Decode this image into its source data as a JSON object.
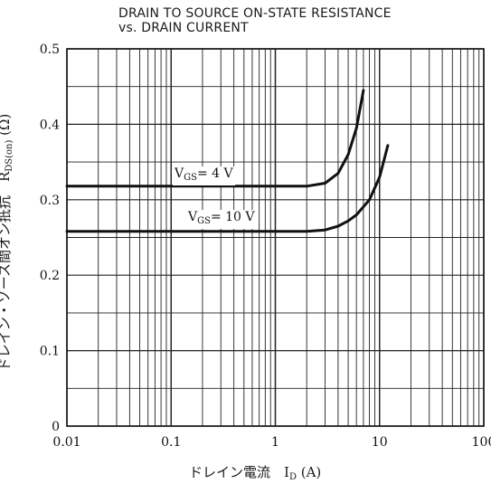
{
  "chart_data": {
    "type": "line",
    "title": "DRAIN TO SOURCE ON-STATE RESISTANCE",
    "subtitle": "vs. DRAIN CURRENT",
    "ylabel_main": "ドレイン・ソース間オン抵抗　R",
    "ylabel_sub": "DS(on)",
    "ylabel_unit": " (Ω)",
    "xlabel_main": "ドレイン電流　I",
    "xlabel_sub": "D",
    "xlabel_unit": " (A)",
    "x_scale": "log",
    "xlim": [
      0.01,
      100
    ],
    "ylim": [
      0,
      0.5
    ],
    "x_ticks": [
      "0.01",
      "0.1",
      "1",
      "10",
      "100"
    ],
    "y_ticks": [
      "0",
      "0.1",
      "0.2",
      "0.3",
      "0.4",
      "0.5"
    ],
    "grid": true,
    "series": [
      {
        "name": "VGS=4 V",
        "label_main": "V",
        "label_sub": "GS",
        "label_rest": "= 4  V",
        "x": [
          0.01,
          0.1,
          1,
          2,
          3,
          4,
          5,
          6,
          7
        ],
        "y": [
          0.318,
          0.318,
          0.318,
          0.318,
          0.322,
          0.335,
          0.36,
          0.395,
          0.445
        ]
      },
      {
        "name": "VGS=10 V",
        "label_main": "V",
        "label_sub": "GS",
        "label_rest": "= 10  V",
        "x": [
          0.01,
          0.1,
          1,
          2,
          3,
          4,
          5,
          6,
          8,
          10,
          12
        ],
        "y": [
          0.258,
          0.258,
          0.258,
          0.258,
          0.26,
          0.265,
          0.272,
          0.28,
          0.3,
          0.33,
          0.372
        ]
      }
    ]
  }
}
